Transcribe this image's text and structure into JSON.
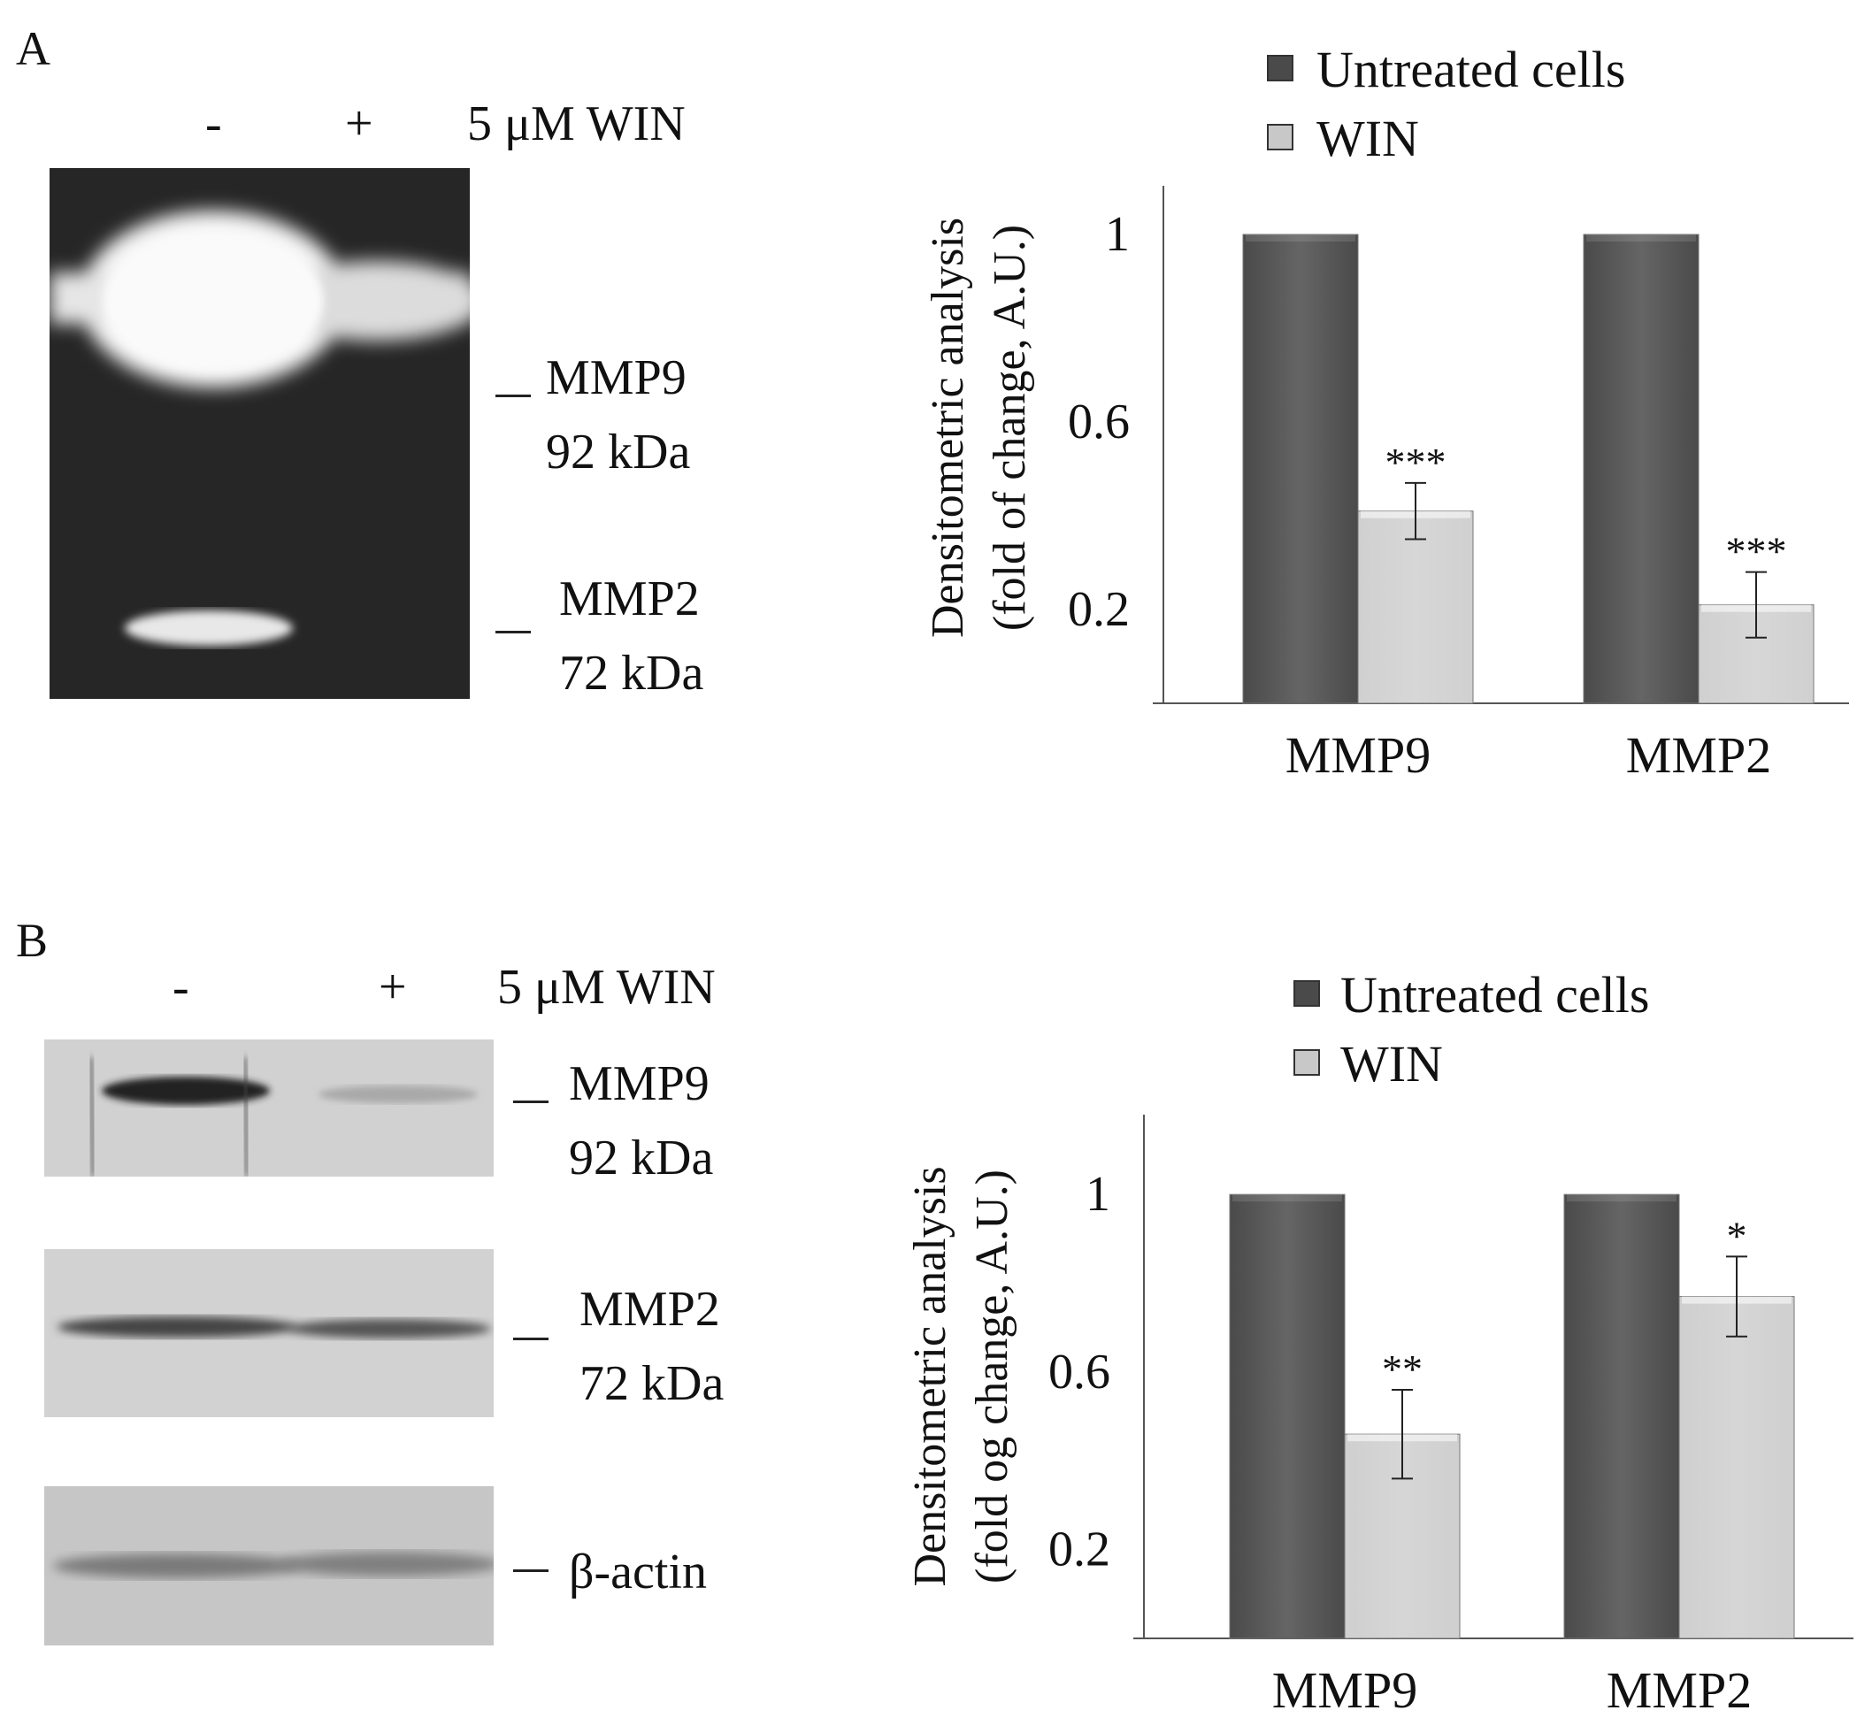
{
  "panels": [
    {
      "letter": "A",
      "lanes": {
        "minus": "-",
        "plus": "+",
        "treatment": "5  μM WIN"
      },
      "bands": [
        {
          "dash": "—",
          "name": "MMP9",
          "size": "92 kDa"
        },
        {
          "dash": "—",
          "name": "MMP2",
          "size": "72 kDa"
        }
      ],
      "legend": [
        {
          "label": "Untreated cells",
          "color": "#4a4a4a"
        },
        {
          "label": "WIN",
          "color": "#c8c8c8"
        }
      ]
    },
    {
      "letter": "B",
      "lanes": {
        "minus": "-",
        "plus": "+",
        "treatment": "5  μM WIN"
      },
      "bands": [
        {
          "dash": "—",
          "name": "MMP9",
          "size": "92 kDa"
        },
        {
          "dash": "—",
          "name": "MMP2",
          "size": "72 kDa"
        },
        {
          "dash": "—",
          "name": "β-actin",
          "size": ""
        }
      ],
      "legend": [
        {
          "label": "Untreated cells",
          "color": "#4a4a4a"
        },
        {
          "label": "WIN",
          "color": "#c8c8c8"
        }
      ]
    }
  ],
  "chart_data": [
    {
      "type": "bar",
      "categories": [
        "MMP9",
        "MMP2"
      ],
      "series": [
        {
          "name": "Untreated cells",
          "values": [
            1.0,
            1.0
          ],
          "color": "#4a4a4a"
        },
        {
          "name": "WIN",
          "values": [
            0.41,
            0.21
          ],
          "errors": [
            0.06,
            0.07
          ],
          "significance": [
            "***",
            "***"
          ],
          "color": "#d0d0d0"
        }
      ],
      "ylabel": [
        "Densitometric analysis",
        "(fold of change, A.U.)"
      ],
      "yticks": [
        0.2,
        0.6,
        1
      ],
      "ylim": [
        0,
        1.1
      ]
    },
    {
      "type": "bar",
      "categories": [
        "MMP9",
        "MMP2"
      ],
      "series": [
        {
          "name": "Untreated cells",
          "values": [
            1.0,
            1.0
          ],
          "color": "#4a4a4a"
        },
        {
          "name": "WIN",
          "values": [
            0.46,
            0.77
          ],
          "errors": [
            0.1,
            0.09
          ],
          "significance": [
            "**",
            "*"
          ],
          "color": "#cfcfcf"
        }
      ],
      "ylabel": [
        "Densitometric analysis",
        "(fold og change, A.U.)"
      ],
      "yticks": [
        0.2,
        0.6,
        1
      ],
      "ylim": [
        0,
        1.1
      ]
    }
  ]
}
